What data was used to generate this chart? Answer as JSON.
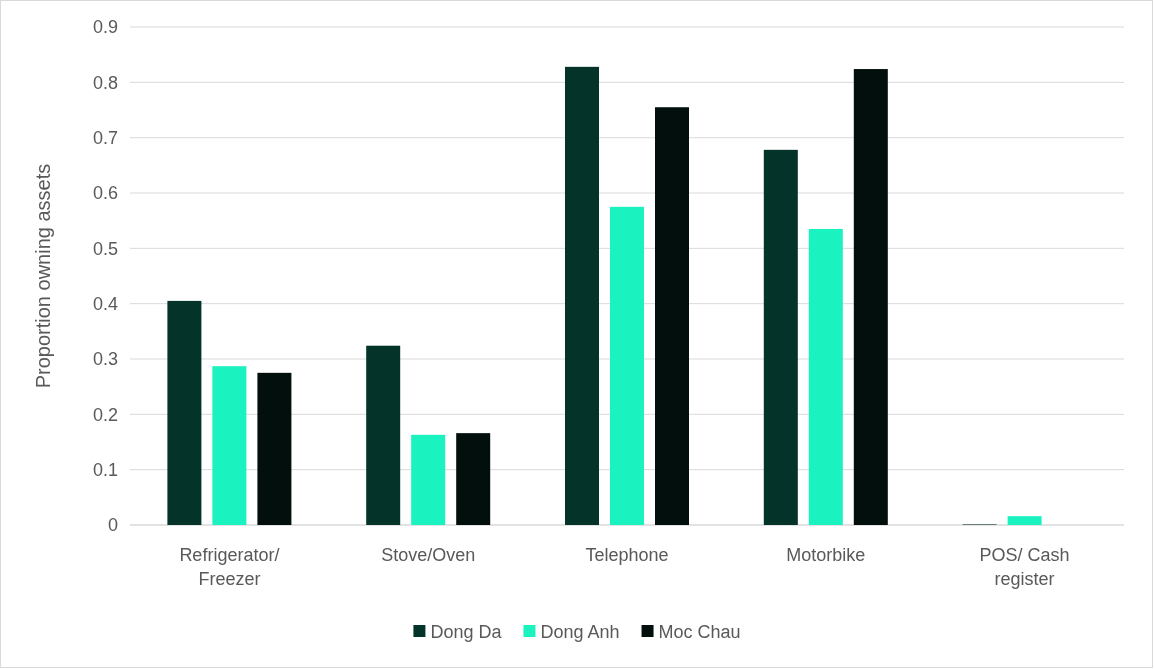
{
  "chart_data": {
    "type": "bar",
    "ylabel": "Proportion owning assets",
    "categories": [
      "Refrigerator/ Freezer",
      "Stove/Oven",
      "Telephone",
      "Motorbike",
      "POS/ Cash register"
    ],
    "series": [
      {
        "name": "Dong Da",
        "color": "#033329",
        "values": [
          0.405,
          0.324,
          0.828,
          0.678,
          0.001
        ]
      },
      {
        "name": "Dong Anh",
        "color": "#1af2c0",
        "values": [
          0.287,
          0.163,
          0.575,
          0.535,
          0.016
        ]
      },
      {
        "name": "Moc Chau",
        "color": "#020f0c",
        "values": [
          0.275,
          0.166,
          0.755,
          0.824,
          0
        ]
      }
    ],
    "ylim": [
      0,
      0.9
    ],
    "yticks": [
      0,
      0.1,
      0.2,
      0.3,
      0.4,
      0.5,
      0.6,
      0.7,
      0.8,
      0.9
    ],
    "grid": "y",
    "legend": "bottom"
  }
}
